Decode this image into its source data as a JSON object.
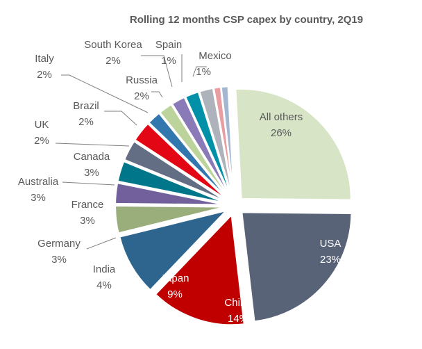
{
  "chart_data": {
    "type": "pie",
    "title": "Rolling 12 months CSP capex by country, 2Q19",
    "exploded": true,
    "legend": "none",
    "slices": [
      {
        "label": "All others",
        "value": 26,
        "value_label": "26%",
        "color": "#d7e4c6"
      },
      {
        "label": "USA",
        "value": 23,
        "value_label": "23%",
        "color": "#596377"
      },
      {
        "label": "China",
        "value": 14,
        "value_label": "14%",
        "color": "#c00000"
      },
      {
        "label": "Japan",
        "value": 9,
        "value_label": "9%",
        "color": "#2d658f"
      },
      {
        "label": "India",
        "value": 4,
        "value_label": "4%",
        "color": "#9aae7b"
      },
      {
        "label": "Germany",
        "value": 3,
        "value_label": "3%",
        "color": "#71609b"
      },
      {
        "label": "France",
        "value": 3,
        "value_label": "3%",
        "color": "#00768b"
      },
      {
        "label": "Australia",
        "value": 3,
        "value_label": "3%",
        "color": "#636d84"
      },
      {
        "label": "Canada",
        "value": 3,
        "value_label": "3%",
        "color": "#e30615"
      },
      {
        "label": "UK",
        "value": 2,
        "value_label": "2%",
        "color": "#3278ae"
      },
      {
        "label": "Brazil",
        "value": 2,
        "value_label": "2%",
        "color": "#bcd39b"
      },
      {
        "label": "Italy",
        "value": 2,
        "value_label": "2%",
        "color": "#8b7ab8"
      },
      {
        "label": "Russia",
        "value": 2,
        "value_label": "2%",
        "color": "#0090a8"
      },
      {
        "label": "South Korea",
        "value": 2,
        "value_label": "2%",
        "color": "#aeb2bb"
      },
      {
        "label": "Spain",
        "value": 1,
        "value_label": "1%",
        "color": "#e89da1"
      },
      {
        "label": "Mexico",
        "value": 1,
        "value_label": "1%",
        "color": "#a3b6d2"
      }
    ]
  }
}
